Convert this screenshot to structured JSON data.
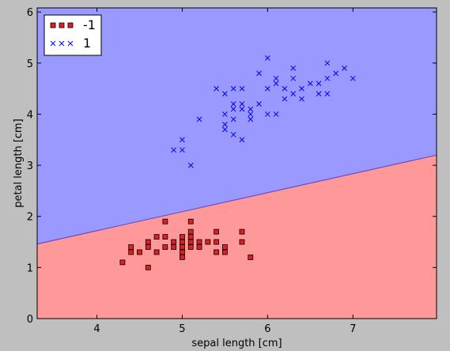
{
  "chart_data": {
    "type": "scatter",
    "title": "",
    "xlabel": "sepal length [cm]",
    "ylabel": "petal length [cm]",
    "xlim": [
      3.3,
      7.98
    ],
    "ylim": [
      0,
      6.08
    ],
    "xticks": [
      4,
      5,
      6,
      7
    ],
    "yticks": [
      0,
      1,
      2,
      3,
      4,
      5,
      6
    ],
    "grid": false,
    "legend": "top-left",
    "decision_boundary": {
      "x": [
        3.3,
        7.98
      ],
      "y": [
        1.46,
        3.2
      ],
      "region_below_color": "#ff9999",
      "region_above_color": "#9999ff",
      "line_color": "#6e4ac4"
    },
    "series": [
      {
        "name": "-1",
        "marker": "square",
        "color": "#e02020",
        "points": [
          [
            4.3,
            1.1
          ],
          [
            4.4,
            1.4
          ],
          [
            4.4,
            1.3
          ],
          [
            4.5,
            1.3
          ],
          [
            4.6,
            1.0
          ],
          [
            4.6,
            1.5
          ],
          [
            4.6,
            1.4
          ],
          [
            4.7,
            1.6
          ],
          [
            4.7,
            1.3
          ],
          [
            4.8,
            1.9
          ],
          [
            4.8,
            1.6
          ],
          [
            4.8,
            1.4
          ],
          [
            4.9,
            1.5
          ],
          [
            4.9,
            1.4
          ],
          [
            5.0,
            1.6
          ],
          [
            5.0,
            1.5
          ],
          [
            5.0,
            1.4
          ],
          [
            5.0,
            1.3
          ],
          [
            5.0,
            1.2
          ],
          [
            5.1,
            1.9
          ],
          [
            5.1,
            1.7
          ],
          [
            5.1,
            1.6
          ],
          [
            5.1,
            1.5
          ],
          [
            5.1,
            1.4
          ],
          [
            5.2,
            1.5
          ],
          [
            5.2,
            1.4
          ],
          [
            5.3,
            1.5
          ],
          [
            5.4,
            1.7
          ],
          [
            5.4,
            1.5
          ],
          [
            5.4,
            1.3
          ],
          [
            5.5,
            1.4
          ],
          [
            5.5,
            1.3
          ],
          [
            5.7,
            1.7
          ],
          [
            5.7,
            1.5
          ],
          [
            5.8,
            1.2
          ]
        ]
      },
      {
        "name": "1",
        "marker": "x",
        "color": "#0000ff",
        "points": [
          [
            4.9,
            3.3
          ],
          [
            5.0,
            3.5
          ],
          [
            5.0,
            3.3
          ],
          [
            5.1,
            3.0
          ],
          [
            5.2,
            3.9
          ],
          [
            5.4,
            4.5
          ],
          [
            5.5,
            4.4
          ],
          [
            5.5,
            4.0
          ],
          [
            5.5,
            3.8
          ],
          [
            5.5,
            3.7
          ],
          [
            5.6,
            4.5
          ],
          [
            5.6,
            4.2
          ],
          [
            5.6,
            4.1
          ],
          [
            5.6,
            3.9
          ],
          [
            5.6,
            3.6
          ],
          [
            5.7,
            4.5
          ],
          [
            5.7,
            4.2
          ],
          [
            5.7,
            4.1
          ],
          [
            5.7,
            3.5
          ],
          [
            5.8,
            4.1
          ],
          [
            5.8,
            4.0
          ],
          [
            5.8,
            3.9
          ],
          [
            5.9,
            4.8
          ],
          [
            5.9,
            4.2
          ],
          [
            6.0,
            5.1
          ],
          [
            6.0,
            4.5
          ],
          [
            6.0,
            4.0
          ],
          [
            6.1,
            4.7
          ],
          [
            6.1,
            4.6
          ],
          [
            6.1,
            4.0
          ],
          [
            6.2,
            4.5
          ],
          [
            6.2,
            4.3
          ],
          [
            6.3,
            4.9
          ],
          [
            6.3,
            4.7
          ],
          [
            6.3,
            4.4
          ],
          [
            6.4,
            4.5
          ],
          [
            6.4,
            4.3
          ],
          [
            6.5,
            4.6
          ],
          [
            6.6,
            4.6
          ],
          [
            6.6,
            4.4
          ],
          [
            6.7,
            5.0
          ],
          [
            6.7,
            4.7
          ],
          [
            6.7,
            4.4
          ],
          [
            6.8,
            4.8
          ],
          [
            6.9,
            4.9
          ],
          [
            7.0,
            4.7
          ]
        ]
      }
    ]
  }
}
